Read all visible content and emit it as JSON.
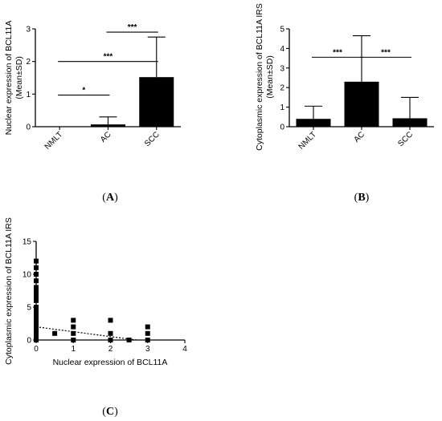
{
  "chart_data": [
    {
      "type": "bar",
      "panel_label": "A",
      "categories": [
        "NMLT",
        "AC",
        "SCC"
      ],
      "values": [
        0,
        0.07,
        1.52
      ],
      "errors": [
        0,
        0.23,
        1.23
      ],
      "ylabel_lines": [
        "Nuclear expression of BCL11A",
        "(Mean±SD)"
      ],
      "ylim": [
        0,
        3
      ],
      "yticks": [
        "0",
        "1",
        "2",
        "3"
      ],
      "bar_color": "#000000",
      "significance": [
        {
          "from": 0,
          "to": 1,
          "label": "*",
          "y": 0.97
        },
        {
          "from": 0,
          "to": 2,
          "label": "***",
          "y": 2.0
        },
        {
          "from": 1,
          "to": 2,
          "label": "***",
          "y": 2.9
        }
      ]
    },
    {
      "type": "bar",
      "panel_label": "B",
      "categories": [
        "NMLT",
        "AC",
        "SCC"
      ],
      "values": [
        0.4,
        2.3,
        0.43
      ],
      "errors": [
        0.65,
        2.35,
        1.07
      ],
      "ylabel_lines": [
        "Cytoplasmic expression of BCL11A IRS",
        "(Mean±SD)"
      ],
      "ylim": [
        0,
        5
      ],
      "yticks": [
        "0",
        "1",
        "2",
        "3",
        "4",
        "5"
      ],
      "bar_color": "#000000",
      "significance": [
        {
          "from": 0,
          "to": 1,
          "label": "***",
          "y": 3.55
        },
        {
          "from": 1,
          "to": 2,
          "label": "***",
          "y": 3.55
        }
      ]
    },
    {
      "type": "scatter",
      "panel_label": "C",
      "xlabel": "Nuclear expression of BCL11A",
      "ylabel": "Cytoplasmic expression of BCL11A IRS",
      "xlim": [
        0,
        4
      ],
      "ylim": [
        0,
        15
      ],
      "xticks": [
        "0",
        "1",
        "2",
        "3",
        "4"
      ],
      "yticks": [
        "0",
        "5",
        "10",
        "15"
      ],
      "points": [
        [
          0,
          0
        ],
        [
          0,
          0.5
        ],
        [
          0,
          1
        ],
        [
          0,
          1.5
        ],
        [
          0,
          2
        ],
        [
          0,
          2.5
        ],
        [
          0,
          3
        ],
        [
          0,
          3.5
        ],
        [
          0,
          4
        ],
        [
          0,
          4.5
        ],
        [
          0,
          5
        ],
        [
          0,
          6
        ],
        [
          0,
          6.5
        ],
        [
          0,
          7
        ],
        [
          0,
          7.5
        ],
        [
          0,
          8
        ],
        [
          0,
          9
        ],
        [
          0,
          10
        ],
        [
          0,
          11
        ],
        [
          0,
          12
        ],
        [
          0.5,
          1
        ],
        [
          1,
          0
        ],
        [
          1,
          1
        ],
        [
          1,
          2
        ],
        [
          1,
          3
        ],
        [
          2,
          0
        ],
        [
          2,
          1
        ],
        [
          2,
          3
        ],
        [
          2.5,
          0
        ],
        [
          3,
          0
        ],
        [
          3,
          1
        ],
        [
          3,
          2
        ]
      ],
      "trendline": [
        [
          0,
          2.0
        ],
        [
          2.7,
          0
        ]
      ],
      "marker": "square",
      "marker_color": "#000000"
    }
  ]
}
